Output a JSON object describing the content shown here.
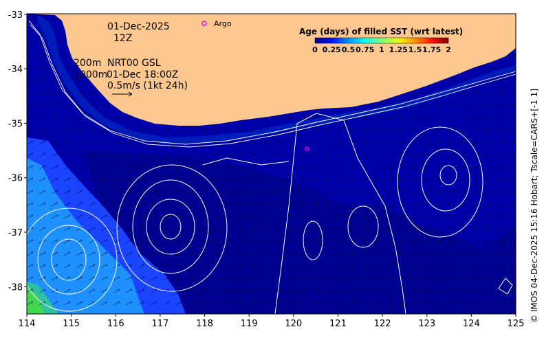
{
  "annotations": {
    "date": "01-Dec-2025",
    "time": "12Z",
    "isobaths": "200m",
    "product": "NRT00 GSL",
    "isobath_deep": "1000m",
    "obs_time": "01-Dec 18:00Z",
    "vector_scale": "0.5m/s (1kt 24h)"
  },
  "legend": {
    "argo_label": "Argo",
    "colorbar_title": "Age (days) of filled SST (wrt latest)",
    "colorbar_ticks": [
      "0",
      "0.25",
      "0.5",
      "0.75",
      "1",
      "1.25",
      "1.5",
      "1.75",
      "2"
    ],
    "colorbar_colors": [
      "#00007f",
      "#0010ff",
      "#0090ff",
      "#10ffef",
      "#7fff7f",
      "#efff10",
      "#ff9000",
      "#ff1000",
      "#7f0000"
    ]
  },
  "axes": {
    "x_ticks": [
      "114",
      "115",
      "116",
      "117",
      "118",
      "119",
      "120",
      "121",
      "122",
      "123",
      "124",
      "125"
    ],
    "y_ticks": [
      "-33",
      "-34",
      "-35",
      "-36",
      "-37",
      "-38"
    ]
  },
  "credit": "© IMOS 04-Dec-2025 15:16 Hobart; Tscale=CARS+[-1 1]",
  "colors": {
    "land": "#fcc88f",
    "ocean": "#0000a8",
    "contour": "#ffffff",
    "argo": "#e000e0"
  },
  "argo_floats": [
    {
      "lon": 118.0,
      "lat": -33.17
    },
    {
      "lon": 120.3,
      "lat": -35.47
    }
  ]
}
